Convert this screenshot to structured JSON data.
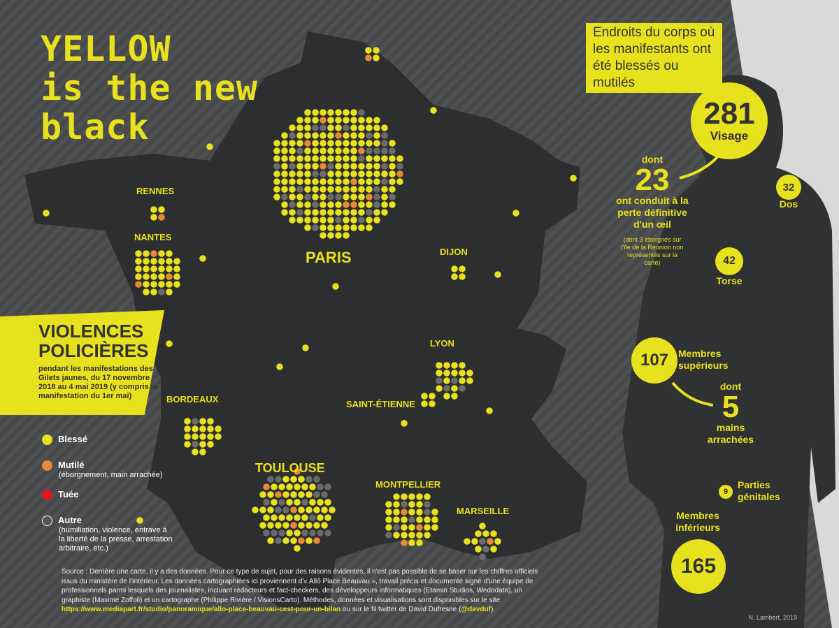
{
  "logo": {
    "line1": "YELLOW",
    "line2": "is the new",
    "line3": "black"
  },
  "cities": [
    {
      "name": "RENNES",
      "size": "small"
    },
    {
      "name": "NANTES",
      "size": "small"
    },
    {
      "name": "PARIS",
      "size": "big"
    },
    {
      "name": "DIJON",
      "size": "small"
    },
    {
      "name": "LYON",
      "size": "small"
    },
    {
      "name": "SAINT-ÉTIENNE",
      "size": "small"
    },
    {
      "name": "BORDEAUX",
      "size": "small"
    },
    {
      "name": "TOULOUSE",
      "size": "mid"
    },
    {
      "name": "MONTPELLIER",
      "size": "small"
    },
    {
      "name": "MARSEILLE",
      "size": "small"
    }
  ],
  "banner": {
    "title1": "VIOLENCES",
    "title2": "POLICIÈRES",
    "subtitle": "pendant les manifestations des Gilets jaunes, du 17 novembre 2018 au 4 mai 2019 (y compris la manifestation du 1er mai)"
  },
  "legend": [
    {
      "label": "Blessé",
      "note": "",
      "color": "#e8e11e"
    },
    {
      "label": "Mutilé",
      "note": "(éborgnement, main arrachée)",
      "color": "#e8893a"
    },
    {
      "label": "Tuée",
      "note": "",
      "color": "#e0141e"
    },
    {
      "label": "Autre",
      "note": "(humiliation, violence, entrave à la liberté de la presse, arrestation arbitraire, etc.)",
      "color": "#555555"
    }
  ],
  "source": {
    "text": "Source : Derrière une carte, il y a des données. Pour ce type de sujet, pour des raisons évidentes, il n'est pas possible de se baser sur les chiffres officiels issus du ministère de l'Intérieur. Les données cartographiées ici proviennent d'« Allô Place Beauvau », travail précis et documenté signé d'une équipe de professionnels parmi lesquels des journalistes, incluant rédacteurs et fact-checkers, des développeurs informatiques (Etamin Studios, Wedodata), un graphiste (Maxime Zoffoli) et un cartographe (Philippe Rivière / VisionsCarto). Méthodes, données et visualisations sont disponibles sur le site",
    "link": "https://www.mediapart.fr/studio/panoramique/allo-place-beauvau-cest-pour-un-bilan",
    "after": " ou sur le fil twitter de David Dufresne (",
    "handle": "@davduf",
    "end": ")."
  },
  "body": {
    "title": "Endroits du corps où les manifestants ont été blessés ou mutilés",
    "visage": {
      "value": "281",
      "label": "Visage"
    },
    "oeil": {
      "prefix": "dont",
      "value": "23",
      "label": "ont conduit à la perte définitive d'un œil",
      "note": "(dont 3 éborgnés sur l'île de la Réunion non représentés sur la carte)"
    },
    "dos": {
      "value": "32",
      "label": "Dos"
    },
    "torse": {
      "value": "42",
      "label": "Torse"
    },
    "membres_sup": {
      "value": "107",
      "label": "Membres supérieurs"
    },
    "mains": {
      "prefix": "dont",
      "value": "5",
      "label": "mains arrachées"
    },
    "genitales": {
      "value": "9",
      "label": "Parties génitales"
    },
    "membres_inf": {
      "value": "165",
      "label": "Membres inférieurs"
    }
  },
  "credit": "N. Lambert, 2019"
}
